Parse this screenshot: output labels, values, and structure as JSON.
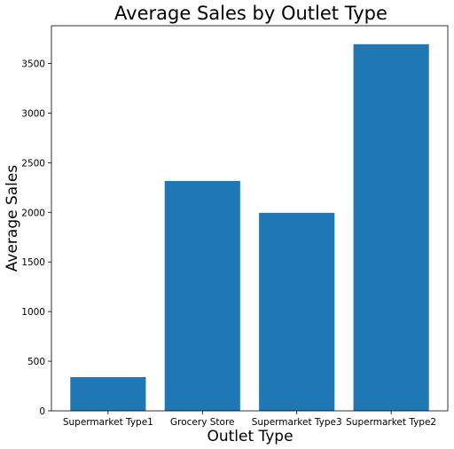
{
  "chart_data": {
    "type": "bar",
    "title": "Average Sales by Outlet Type",
    "xlabel": "Outlet Type",
    "ylabel": "Average Sales",
    "categories": [
      "Supermarket Type1",
      "Grocery Store",
      "Supermarket Type3",
      "Supermarket Type2"
    ],
    "values": [
      340,
      2316,
      1995,
      3694
    ],
    "ylim": [
      0,
      3880
    ],
    "yticks": [
      0,
      500,
      1000,
      1500,
      2000,
      2500,
      3000,
      3500
    ],
    "bar_color": "#1f77b4",
    "grid": false
  }
}
